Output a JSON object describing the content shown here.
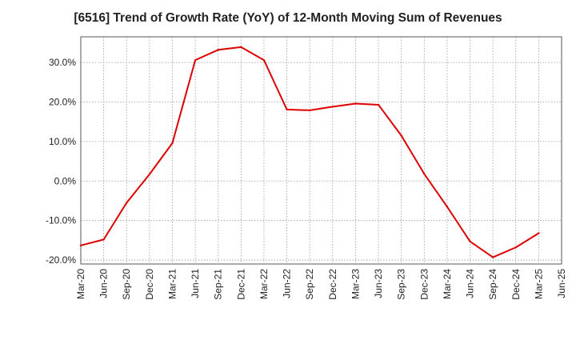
{
  "chart_data": {
    "type": "line",
    "title": "[6516]  Trend of Growth Rate (YoY) of 12-Month Moving Sum of Revenues",
    "xlabel": "",
    "ylabel": "",
    "x": [
      "Mar-20",
      "Jun-20",
      "Sep-20",
      "Dec-20",
      "Mar-21",
      "Jun-21",
      "Sep-21",
      "Dec-21",
      "Mar-22",
      "Jun-22",
      "Sep-22",
      "Dec-22",
      "Mar-23",
      "Jun-23",
      "Sep-23",
      "Dec-23",
      "Mar-24",
      "Jun-24",
      "Sep-24",
      "Dec-24",
      "Mar-25",
      "Jun-25"
    ],
    "series": [
      {
        "name": "",
        "color": "#dd0000",
        "values": [
          -16.3,
          -14.8,
          -5.5,
          1.7,
          9.6,
          30.6,
          33.2,
          33.9,
          30.6,
          18.1,
          17.9,
          18.8,
          19.6,
          19.3,
          11.5,
          1.8,
          -6.5,
          -15.3,
          -19.3,
          -16.8,
          -13.2,
          null
        ]
      }
    ],
    "ylim": [
      -21,
      36.5
    ],
    "yticks": [
      -20,
      -10,
      0,
      10,
      20,
      30
    ],
    "ytick_labels": [
      "-20.0%",
      "-10.0%",
      "0.0%",
      "10.0%",
      "20.0%",
      "30.0%"
    ],
    "grid": true,
    "grid_style": "dotted",
    "legend": "none"
  }
}
